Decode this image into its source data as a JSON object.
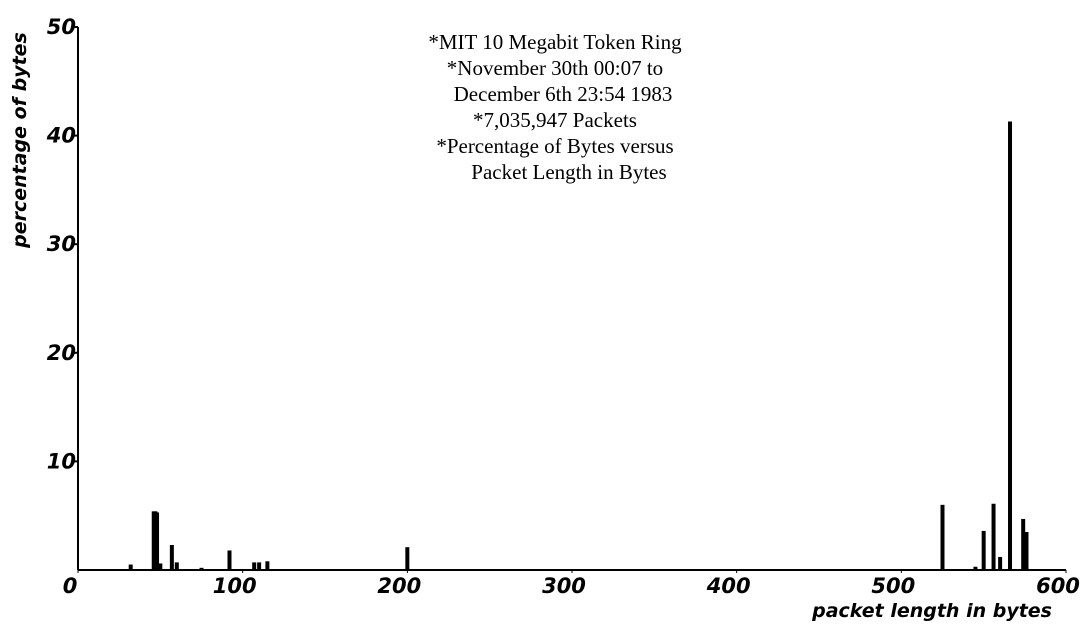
{
  "chart_data": {
    "type": "bar",
    "annotations": [
      "*MIT 10 Megabit Token Ring",
      "*November 30th 00:07 to",
      "December 6th 23:54 1983",
      "*7,035,947 Packets",
      "*Percentage of Bytes versus",
      "Packet Length in Bytes"
    ],
    "x_label": "packet length in bytes",
    "y_label": "percentage of bytes",
    "x": [
      32,
      46,
      47,
      48,
      50,
      57,
      60,
      75,
      92,
      107,
      110,
      115,
      200,
      525,
      545,
      550,
      556,
      560,
      566,
      574,
      576
    ],
    "values": [
      0.5,
      5.4,
      5.4,
      5.3,
      0.6,
      2.3,
      0.7,
      0.2,
      1.8,
      0.7,
      0.7,
      0.8,
      2.1,
      6.0,
      0.3,
      3.6,
      6.1,
      1.2,
      41.3,
      4.7,
      3.5
    ],
    "color": "#000000",
    "xlim": [
      0,
      600
    ],
    "xticks": [
      0,
      100,
      200,
      300,
      400,
      500,
      600
    ],
    "ylim": [
      0,
      50
    ],
    "yticks": [
      10,
      20,
      30,
      40,
      50
    ],
    "grid": false
  }
}
